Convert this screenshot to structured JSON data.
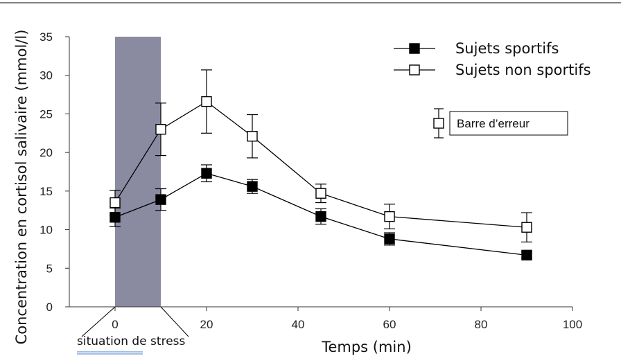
{
  "chart_data": {
    "type": "line",
    "title": "",
    "xlabel": "Temps (min)",
    "ylabel": "Concentration en cortisol salivaire (mmol/l)",
    "xlim": [
      -10,
      100
    ],
    "ylim": [
      0,
      35
    ],
    "x_ticks": [
      0,
      20,
      40,
      60,
      80,
      100
    ],
    "y_ticks": [
      0,
      5,
      10,
      15,
      20,
      25,
      30,
      35
    ],
    "grid": false,
    "legend_position": "top-right",
    "series": [
      {
        "name": "Sujets sportifs",
        "marker": "filled-square",
        "color": "#000000",
        "x": [
          0,
          10,
          20,
          30,
          45,
          60,
          90
        ],
        "y": [
          11.6,
          13.9,
          17.3,
          15.6,
          11.7,
          8.8,
          6.7
        ],
        "error": [
          1.2,
          1.4,
          1.1,
          0.9,
          1.0,
          0.8,
          0.4
        ]
      },
      {
        "name": "Sujets non sportifs",
        "marker": "open-square",
        "color": "#000000",
        "x": [
          0,
          10,
          20,
          30,
          45,
          60,
          90
        ],
        "y": [
          13.5,
          23.0,
          26.6,
          22.1,
          14.7,
          11.7,
          10.3
        ],
        "error": [
          1.6,
          3.4,
          4.1,
          2.8,
          1.2,
          1.6,
          1.9
        ]
      }
    ],
    "shaded_region": {
      "x_start": 0,
      "x_end": 10,
      "color": "#8a8aa0"
    },
    "annotations": {
      "stress_label": "situation de stress",
      "error_bar_label": "Barre d’erreur"
    }
  }
}
